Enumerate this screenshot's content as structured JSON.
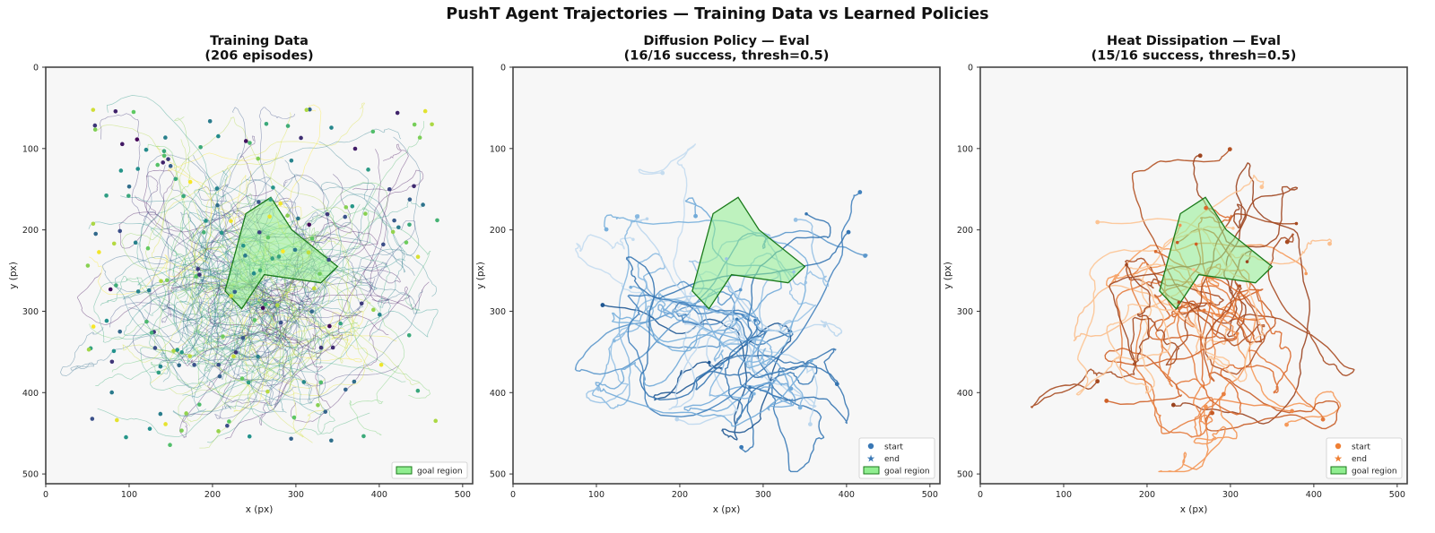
{
  "suptitle": "PushT Agent Trajectories — Training Data vs Learned Policies",
  "colors": {
    "background": "#f7f7f7",
    "goal_fill": "#90ee90",
    "goal_edge": "#1a7a1a",
    "diffusion": "#3a78b5",
    "heat": "#ef7f34"
  },
  "chart_data": [
    {
      "type": "line",
      "title": "Training Data\n(206 episodes)",
      "xlabel": "x (px)",
      "ylabel": "y (px)",
      "xlim": [
        0,
        512
      ],
      "ylim": [
        512,
        0
      ],
      "xticks": [
        0,
        100,
        200,
        300,
        400,
        500
      ],
      "yticks": [
        0,
        100,
        200,
        300,
        400,
        500
      ],
      "colormap": "viridis",
      "episodes": 206,
      "legend": {
        "position": "bottom-right",
        "entries": [
          "goal region"
        ]
      },
      "goal_region": [
        [
          240,
          180
        ],
        [
          215,
          275
        ],
        [
          235,
          297
        ],
        [
          262,
          255
        ],
        [
          330,
          265
        ],
        [
          350,
          245
        ],
        [
          295,
          200
        ],
        [
          270,
          160
        ]
      ]
    },
    {
      "type": "line",
      "title": "Diffusion Policy — Eval\n(16/16 success, thresh=0.5)",
      "xlabel": "x (px)",
      "ylabel": "y (px)",
      "xlim": [
        0,
        512
      ],
      "ylim": [
        512,
        0
      ],
      "xticks": [
        0,
        100,
        200,
        300,
        400,
        500
      ],
      "yticks": [
        0,
        100,
        200,
        300,
        400,
        500
      ],
      "colormap": "Blues",
      "episodes": 16,
      "success": "16/16",
      "threshold": 0.5,
      "legend": {
        "position": "bottom-right",
        "entries": [
          "start",
          "end",
          "goal region"
        ]
      },
      "goal_region": [
        [
          240,
          180
        ],
        [
          215,
          275
        ],
        [
          235,
          297
        ],
        [
          262,
          255
        ],
        [
          330,
          265
        ],
        [
          350,
          245
        ],
        [
          295,
          200
        ],
        [
          270,
          160
        ]
      ]
    },
    {
      "type": "line",
      "title": "Heat Dissipation — Eval\n(15/16 success, thresh=0.5)",
      "xlabel": "x (px)",
      "ylabel": "y (px)",
      "xlim": [
        0,
        512
      ],
      "ylim": [
        512,
        0
      ],
      "xticks": [
        0,
        100,
        200,
        300,
        400,
        500
      ],
      "yticks": [
        0,
        100,
        200,
        300,
        400,
        500
      ],
      "colormap": "Oranges",
      "episodes": 16,
      "success": "15/16",
      "threshold": 0.5,
      "legend": {
        "position": "bottom-right",
        "entries": [
          "start",
          "end",
          "goal region"
        ]
      },
      "goal_region": [
        [
          240,
          180
        ],
        [
          215,
          275
        ],
        [
          235,
          297
        ],
        [
          262,
          255
        ],
        [
          330,
          265
        ],
        [
          350,
          245
        ],
        [
          295,
          200
        ],
        [
          270,
          160
        ]
      ]
    }
  ]
}
